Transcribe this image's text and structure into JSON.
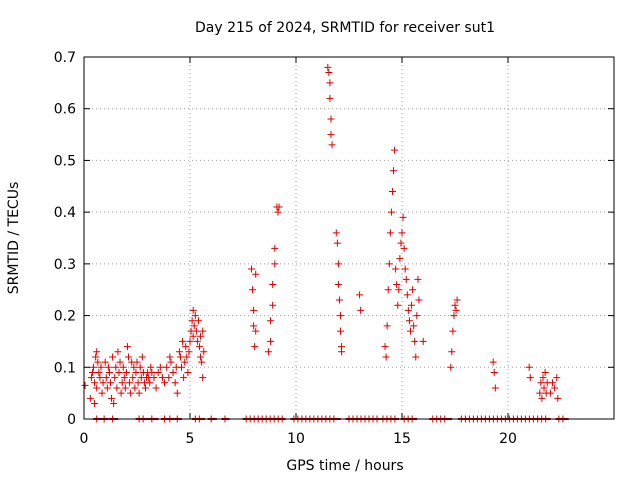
{
  "chart_data": {
    "type": "scatter",
    "title": "Day 215 of 2024, SRMTID for receiver sut1",
    "xlabel": "GPS time / hours",
    "ylabel": "SRMTID / TECUs",
    "xlim": [
      0,
      25
    ],
    "ylim": [
      0,
      0.7
    ],
    "grid": true,
    "xticks": [
      0,
      5,
      10,
      15,
      20
    ],
    "xtick_labels": [
      "0",
      "5",
      "10",
      "15",
      "20"
    ],
    "yticks": [
      0,
      0.1,
      0.2,
      0.3,
      0.4,
      0.5,
      0.6,
      0.7
    ],
    "ytick_labels": [
      "0",
      "0.1",
      "0.2",
      "0.3",
      "0.4",
      "0.5",
      "0.6",
      "0.7"
    ],
    "marker": "+",
    "marker_color": "#dd0000",
    "series": [
      {
        "name": "sut1",
        "points": [
          [
            0.05,
            0.065
          ],
          [
            0.3,
            0.04
          ],
          [
            0.35,
            0.08
          ],
          [
            0.4,
            0.09
          ],
          [
            0.45,
            0.1
          ],
          [
            0.5,
            0.07
          ],
          [
            0.5,
            0.03
          ],
          [
            0.55,
            0.12
          ],
          [
            0.6,
            0.13
          ],
          [
            0.6,
            0.06
          ],
          [
            0.65,
            0.11
          ],
          [
            0.7,
            0.09
          ],
          [
            0.75,
            0.08
          ],
          [
            0.8,
            0.1
          ],
          [
            0.85,
            0.05
          ],
          [
            0.9,
            0.07
          ],
          [
            1.0,
            0.11
          ],
          [
            1.05,
            0.08
          ],
          [
            1.1,
            0.06
          ],
          [
            1.15,
            0.1
          ],
          [
            1.2,
            0.09
          ],
          [
            1.25,
            0.07
          ],
          [
            1.3,
            0.04
          ],
          [
            1.35,
            0.12
          ],
          [
            1.4,
            0.03
          ],
          [
            1.45,
            0.08
          ],
          [
            1.5,
            0.1
          ],
          [
            1.55,
            0.06
          ],
          [
            1.6,
            0.13
          ],
          [
            1.65,
            0.09
          ],
          [
            1.7,
            0.11
          ],
          [
            1.75,
            0.05
          ],
          [
            1.8,
            0.07
          ],
          [
            1.85,
            0.1
          ],
          [
            1.9,
            0.08
          ],
          [
            1.95,
            0.06
          ],
          [
            2.0,
            0.09
          ],
          [
            2.05,
            0.14
          ],
          [
            2.1,
            0.12
          ],
          [
            2.15,
            0.07
          ],
          [
            2.2,
            0.05
          ],
          [
            2.25,
            0.11
          ],
          [
            2.3,
            0.08
          ],
          [
            2.35,
            0.1
          ],
          [
            2.4,
            0.06
          ],
          [
            2.45,
            0.09
          ],
          [
            2.5,
            0.11
          ],
          [
            2.55,
            0.07
          ],
          [
            2.6,
            0.05
          ],
          [
            2.65,
            0.1
          ],
          [
            2.7,
            0.08
          ],
          [
            2.75,
            0.12
          ],
          [
            2.8,
            0.09
          ],
          [
            2.85,
            0.07
          ],
          [
            2.9,
            0.06
          ],
          [
            2.95,
            0.08
          ],
          [
            3.0,
            0.09
          ],
          [
            3.05,
            0.08
          ],
          [
            3.1,
            0.07
          ],
          [
            3.15,
            0.1
          ],
          [
            3.2,
            0.09
          ],
          [
            3.3,
            0.08
          ],
          [
            3.4,
            0.06
          ],
          [
            3.5,
            0.09
          ],
          [
            3.6,
            0.1
          ],
          [
            3.7,
            0.08
          ],
          [
            3.8,
            0.07
          ],
          [
            3.9,
            0.1
          ],
          [
            4.0,
            0.08
          ],
          [
            4.05,
            0.12
          ],
          [
            4.1,
            0.11
          ],
          [
            4.2,
            0.09
          ],
          [
            4.3,
            0.07
          ],
          [
            4.35,
            0.1
          ],
          [
            4.4,
            0.05
          ],
          [
            4.5,
            0.13
          ],
          [
            4.55,
            0.12
          ],
          [
            4.6,
            0.1
          ],
          [
            4.65,
            0.15
          ],
          [
            4.7,
            0.08
          ],
          [
            4.75,
            0.11
          ],
          [
            4.8,
            0.14
          ],
          [
            4.85,
            0.12
          ],
          [
            4.9,
            0.09
          ],
          [
            4.95,
            0.13
          ],
          [
            5.0,
            0.15
          ],
          [
            5.05,
            0.17
          ],
          [
            5.1,
            0.19
          ],
          [
            5.15,
            0.21
          ],
          [
            5.15,
            0.16
          ],
          [
            5.2,
            0.18
          ],
          [
            5.25,
            0.2
          ],
          [
            5.3,
            0.17
          ],
          [
            5.35,
            0.15
          ],
          [
            5.4,
            0.19
          ],
          [
            5.45,
            0.14
          ],
          [
            5.5,
            0.16
          ],
          [
            5.5,
            0.12
          ],
          [
            5.55,
            0.11
          ],
          [
            5.6,
            0.17
          ],
          [
            5.6,
            0.08
          ],
          [
            5.65,
            0.13
          ],
          [
            7.9,
            0.29
          ],
          [
            7.95,
            0.25
          ],
          [
            8.0,
            0.21
          ],
          [
            8.0,
            0.18
          ],
          [
            8.05,
            0.14
          ],
          [
            8.1,
            0.17
          ],
          [
            8.1,
            0.28
          ],
          [
            8.7,
            0.13
          ],
          [
            8.8,
            0.19
          ],
          [
            8.8,
            0.15
          ],
          [
            8.9,
            0.26
          ],
          [
            8.9,
            0.22
          ],
          [
            9.0,
            0.3
          ],
          [
            9.0,
            0.33
          ],
          [
            9.1,
            0.41
          ],
          [
            9.15,
            0.4
          ],
          [
            9.2,
            0.41
          ],
          [
            11.5,
            0.68
          ],
          [
            11.55,
            0.67
          ],
          [
            11.6,
            0.65
          ],
          [
            11.6,
            0.62
          ],
          [
            11.65,
            0.58
          ],
          [
            11.65,
            0.55
          ],
          [
            11.7,
            0.53
          ],
          [
            11.9,
            0.36
          ],
          [
            11.95,
            0.34
          ],
          [
            12.0,
            0.3
          ],
          [
            12.0,
            0.26
          ],
          [
            12.05,
            0.23
          ],
          [
            12.1,
            0.2
          ],
          [
            12.1,
            0.17
          ],
          [
            12.15,
            0.14
          ],
          [
            12.15,
            0.13
          ],
          [
            13.0,
            0.24
          ],
          [
            13.05,
            0.21
          ],
          [
            14.2,
            0.14
          ],
          [
            14.25,
            0.12
          ],
          [
            14.3,
            0.18
          ],
          [
            14.35,
            0.25
          ],
          [
            14.4,
            0.3
          ],
          [
            14.45,
            0.36
          ],
          [
            14.5,
            0.4
          ],
          [
            14.55,
            0.44
          ],
          [
            14.6,
            0.48
          ],
          [
            14.65,
            0.52
          ],
          [
            14.7,
            0.29
          ],
          [
            14.75,
            0.26
          ],
          [
            14.8,
            0.22
          ],
          [
            14.85,
            0.25
          ],
          [
            14.9,
            0.31
          ],
          [
            14.95,
            0.34
          ],
          [
            15.0,
            0.36
          ],
          [
            15.05,
            0.39
          ],
          [
            15.1,
            0.33
          ],
          [
            15.15,
            0.29
          ],
          [
            15.2,
            0.27
          ],
          [
            15.25,
            0.24
          ],
          [
            15.3,
            0.21
          ],
          [
            15.35,
            0.19
          ],
          [
            15.4,
            0.17
          ],
          [
            15.45,
            0.22
          ],
          [
            15.5,
            0.25
          ],
          [
            15.55,
            0.18
          ],
          [
            15.6,
            0.15
          ],
          [
            15.65,
            0.12
          ],
          [
            15.7,
            0.2
          ],
          [
            15.75,
            0.27
          ],
          [
            15.8,
            0.23
          ],
          [
            16.0,
            0.15
          ],
          [
            17.3,
            0.1
          ],
          [
            17.35,
            0.13
          ],
          [
            17.4,
            0.17
          ],
          [
            17.45,
            0.2
          ],
          [
            17.5,
            0.22
          ],
          [
            17.55,
            0.21
          ],
          [
            17.6,
            0.23
          ],
          [
            19.3,
            0.11
          ],
          [
            19.35,
            0.09
          ],
          [
            19.4,
            0.06
          ],
          [
            21.0,
            0.1
          ],
          [
            21.05,
            0.08
          ],
          [
            21.5,
            0.05
          ],
          [
            21.55,
            0.07
          ],
          [
            21.6,
            0.04
          ],
          [
            21.65,
            0.08
          ],
          [
            21.7,
            0.06
          ],
          [
            21.75,
            0.09
          ],
          [
            21.8,
            0.05
          ],
          [
            21.85,
            0.07
          ],
          [
            22.0,
            0.05
          ],
          [
            22.1,
            0.07
          ],
          [
            22.2,
            0.06
          ],
          [
            22.3,
            0.08
          ],
          [
            22.35,
            0.04
          ]
        ],
        "zero_segments": [
          [
            0.6,
            0.65
          ],
          [
            0.95,
            1.0
          ],
          [
            1.35,
            1.45
          ],
          [
            2.6,
            2.9
          ],
          [
            3.2,
            3.35
          ],
          [
            3.8,
            3.85
          ],
          [
            4.05,
            4.1
          ],
          [
            4.4,
            4.45
          ],
          [
            5.25,
            5.55
          ],
          [
            6.0,
            6.1
          ],
          [
            6.65,
            6.7
          ],
          [
            7.65,
            9.35
          ],
          [
            9.9,
            11.95
          ],
          [
            12.5,
            13.9
          ],
          [
            14.1,
            14.7
          ],
          [
            15.1,
            15.55
          ],
          [
            16.45,
            17.2
          ],
          [
            17.8,
            21.3
          ],
          [
            21.4,
            21.85
          ],
          [
            22.4,
            22.7
          ]
        ]
      }
    ]
  }
}
